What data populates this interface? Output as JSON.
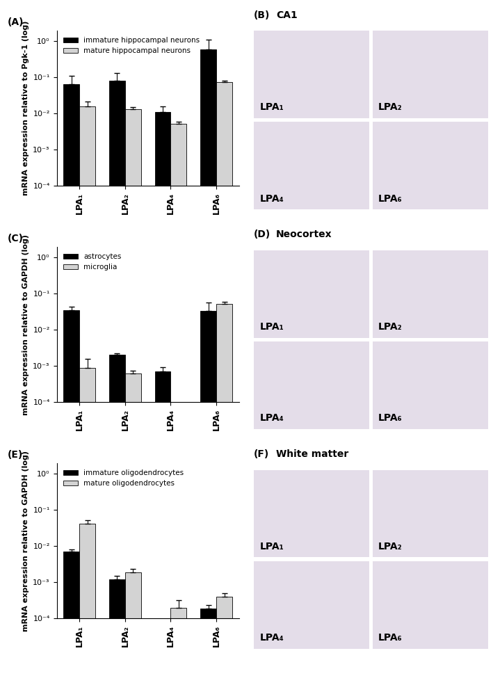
{
  "chart_data": [
    {
      "type": "bar",
      "title": "(A)",
      "categories": [
        "LPA₁",
        "LPA₂",
        "LPA₄",
        "LPA₆"
      ],
      "y_label": "mRNA expression relative to Pgk-1 (log)",
      "log": "y",
      "ylim": [
        0.0001,
        2
      ],
      "yticks": [
        {
          "value": 0.0001,
          "label": "10⁻⁴"
        },
        {
          "value": 0.001,
          "label": "10⁻³"
        },
        {
          "value": 0.01,
          "label": "10⁻²"
        },
        {
          "value": 0.1,
          "label": "10⁻¹"
        },
        {
          "value": 1,
          "label": "10⁰"
        }
      ],
      "legend": "upper left",
      "series": [
        {
          "name": "immature hippocampal neurons",
          "color": "#000000",
          "values": [
            0.065,
            0.08,
            0.011,
            0.6
          ],
          "errors": [
            0.045,
            0.05,
            0.005,
            0.5
          ]
        },
        {
          "name": "mature hippocampal neurons",
          "color": "#d3d3d3",
          "values": [
            0.016,
            0.013,
            0.0053,
            0.075
          ],
          "errors": [
            0.006,
            0.002,
            0.0006,
            0.005
          ]
        }
      ]
    },
    {
      "type": "bar",
      "title": "(C)",
      "categories": [
        "LPA₁",
        "LPA₂",
        "LPA₄",
        "LPA₆"
      ],
      "y_label": "mRNA expression relative to GAPDH (log)",
      "log": "y",
      "ylim": [
        0.0001,
        2
      ],
      "yticks": [
        {
          "value": 0.0001,
          "label": "10⁻⁴"
        },
        {
          "value": 0.001,
          "label": "10⁻³"
        },
        {
          "value": 0.01,
          "label": "10⁻²"
        },
        {
          "value": 0.1,
          "label": "10⁻¹"
        },
        {
          "value": 1,
          "label": "10⁰"
        }
      ],
      "legend": "upper left",
      "series": [
        {
          "name": "astrocytes",
          "color": "#000000",
          "values": [
            0.035,
            0.0021,
            0.0007,
            0.033
          ],
          "errors": [
            0.008,
            0.0002,
            0.00025,
            0.025
          ]
        },
        {
          "name": "microglia",
          "color": "#d3d3d3",
          "values": [
            0.0009,
            0.00063,
            null,
            0.053
          ],
          "errors": [
            0.0007,
            0.0001,
            null,
            0.008
          ]
        }
      ]
    },
    {
      "type": "bar",
      "title": "(E)",
      "categories": [
        "LPA₁",
        "LPA₂",
        "LPA₄",
        "LPA₆"
      ],
      "y_label": "mRNA expression relative to GAPDH (log)",
      "log": "y",
      "ylim": [
        0.0001,
        2
      ],
      "yticks": [
        {
          "value": 0.0001,
          "label": "10⁻⁴"
        },
        {
          "value": 0.001,
          "label": "10⁻³"
        },
        {
          "value": 0.01,
          "label": "10⁻²"
        },
        {
          "value": 0.1,
          "label": "10⁻¹"
        },
        {
          "value": 1,
          "label": "10⁰"
        }
      ],
      "legend": "upper left",
      "series": [
        {
          "name": "immature oligodendrocytes",
          "color": "#000000",
          "values": [
            0.0072,
            0.0012,
            null,
            0.00019
          ],
          "errors": [
            0.0008,
            0.0003,
            null,
            5e-05
          ]
        },
        {
          "name": "mature oligodendrocytes",
          "color": "#d3d3d3",
          "values": [
            0.042,
            0.0019,
            0.0002,
            0.0004
          ],
          "errors": [
            0.01,
            0.0005,
            0.00012,
            0.0001
          ]
        }
      ]
    }
  ],
  "image_panels": [
    {
      "label": "(B)",
      "title": "CA1",
      "images": [
        "LPA₁",
        "LPA₂",
        "LPA₄",
        "LPA₆"
      ]
    },
    {
      "label": "(D)",
      "title": "Neocortex",
      "images": [
        "LPA₁",
        "LPA₂",
        "LPA₄",
        "LPA₆"
      ]
    },
    {
      "label": "(F)",
      "title": "White matter",
      "images": [
        "LPA₁",
        "LPA₂",
        "LPA₄",
        "LPA₆"
      ]
    }
  ]
}
